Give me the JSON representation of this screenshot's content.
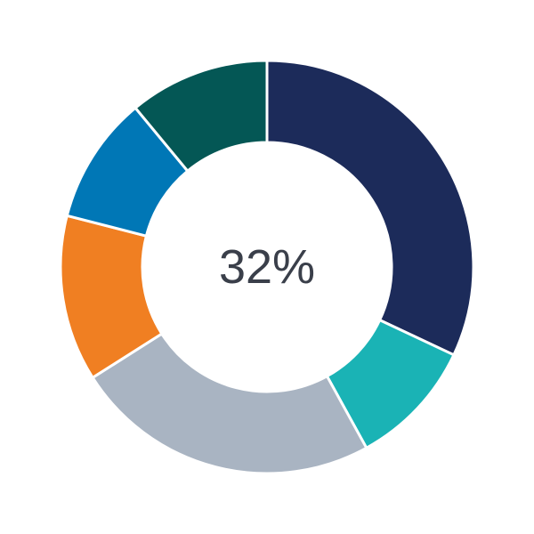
{
  "chart_data": {
    "type": "pie",
    "variant": "donut",
    "center_label": "32%",
    "start": "top",
    "direction": "clockwise",
    "slices": [
      {
        "value": 32,
        "color": "#1c2b5a"
      },
      {
        "value": 10,
        "color": "#1ab3b5"
      },
      {
        "value": 24,
        "color": "#a9b4c2"
      },
      {
        "value": 13,
        "color": "#f07f22"
      },
      {
        "value": 10,
        "color": "#0077b6"
      },
      {
        "value": 11,
        "color": "#045755"
      }
    ],
    "legend": "none"
  }
}
